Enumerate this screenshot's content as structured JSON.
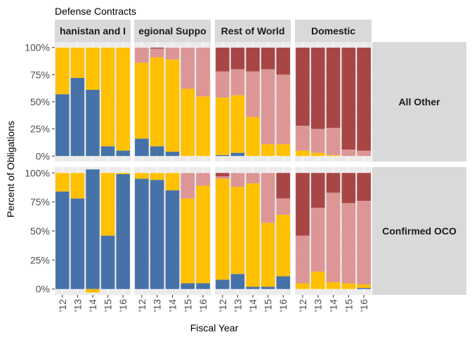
{
  "chart_data": {
    "type": "bar",
    "stacked": true,
    "title": "Defense Contracts",
    "xlabel": "Fiscal Year",
    "ylabel": "Percent of Obligations",
    "ylim": [
      -0.05,
      1.05
    ],
    "y_ticks": [
      0,
      0.25,
      0.5,
      0.75,
      1.0
    ],
    "y_tick_labels": [
      "0%",
      "25%",
      "50%",
      "75%",
      "100%"
    ],
    "categories": [
      "'12",
      "'13",
      "'14",
      "'15",
      "'16"
    ],
    "grid": true,
    "legend": "none",
    "column_facets": [
      "hanistan and I",
      "egional Suppo",
      "Rest of World",
      "Domestic"
    ],
    "row_facets": [
      "All Other",
      "Confirmed OCO"
    ],
    "series_colors": [
      "#4672a8",
      "#ffc000",
      "#dc9696",
      "#a84646"
    ],
    "panels": [
      {
        "row": 0,
        "col": 0,
        "stacks": [
          [
            0.57,
            0.43,
            0,
            0
          ],
          [
            0.72,
            0.28,
            0,
            0
          ],
          [
            0.61,
            0.39,
            0,
            0
          ],
          [
            0.09,
            0.91,
            0,
            0
          ],
          [
            0.05,
            0.95,
            0,
            0
          ]
        ]
      },
      {
        "row": 0,
        "col": 1,
        "stacks": [
          [
            0.16,
            0.7,
            0.14,
            0
          ],
          [
            0.09,
            0.82,
            0.08,
            0.01
          ],
          [
            0.04,
            0.85,
            0.11,
            0
          ],
          [
            0.0,
            0.62,
            0.38,
            0
          ],
          [
            0.0,
            0.55,
            0.45,
            0
          ]
        ]
      },
      {
        "row": 0,
        "col": 2,
        "stacks": [
          [
            0.01,
            0.53,
            0.24,
            0.22
          ],
          [
            0.03,
            0.53,
            0.24,
            0.2
          ],
          [
            0.0,
            0.36,
            0.42,
            0.22
          ],
          [
            0.0,
            0.11,
            0.69,
            0.2
          ],
          [
            0.0,
            0.11,
            0.64,
            0.25
          ]
        ]
      },
      {
        "row": 0,
        "col": 3,
        "stacks": [
          [
            0.0,
            0.05,
            0.23,
            0.72
          ],
          [
            0.0,
            0.03,
            0.22,
            0.75
          ],
          [
            0.0,
            0.01,
            0.25,
            0.74
          ],
          [
            0.0,
            0.0,
            0.06,
            0.94
          ],
          [
            0.0,
            0.0,
            0.05,
            0.95
          ]
        ]
      },
      {
        "row": 1,
        "col": 0,
        "stacks": [
          [
            0.84,
            0.16,
            0,
            0
          ],
          [
            0.78,
            0.22,
            0,
            0
          ],
          [
            1.03,
            -0.03,
            0,
            0
          ],
          [
            0.46,
            0.54,
            0,
            0
          ],
          [
            0.99,
            0.01,
            0,
            0
          ]
        ]
      },
      {
        "row": 1,
        "col": 1,
        "stacks": [
          [
            0.95,
            0.05,
            0,
            0
          ],
          [
            0.94,
            0.06,
            0,
            0
          ],
          [
            0.85,
            0.15,
            0,
            0
          ],
          [
            0.05,
            0.73,
            0.22,
            0
          ],
          [
            0.05,
            0.84,
            0.11,
            0
          ]
        ]
      },
      {
        "row": 1,
        "col": 2,
        "stacks": [
          [
            0.08,
            0.87,
            0.02,
            0.03
          ],
          [
            0.13,
            0.75,
            0.12,
            0.0
          ],
          [
            0.02,
            0.89,
            0.09,
            0.0
          ],
          [
            0.02,
            0.55,
            0.43,
            0.0
          ],
          [
            0.11,
            0.53,
            0.14,
            0.22
          ]
        ]
      },
      {
        "row": 1,
        "col": 3,
        "stacks": [
          [
            0.0,
            0.05,
            0.41,
            0.54
          ],
          [
            0.0,
            0.15,
            0.55,
            0.3
          ],
          [
            0.0,
            0.06,
            0.77,
            0.17
          ],
          [
            0.0,
            0.05,
            0.69,
            0.26
          ],
          [
            0.01,
            0.03,
            0.72,
            0.24
          ]
        ]
      }
    ]
  }
}
